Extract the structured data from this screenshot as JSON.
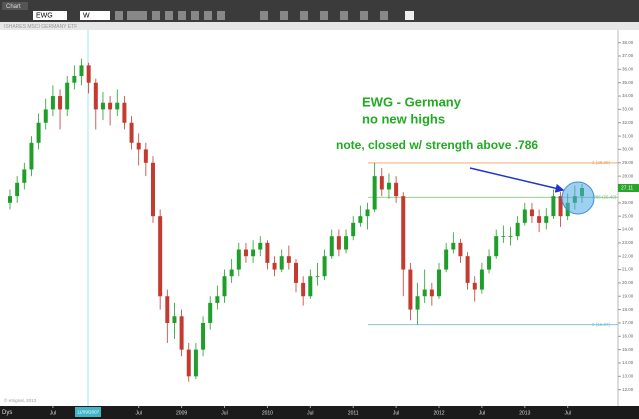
{
  "toolbar": {
    "tab": "Chart",
    "symbol": "EWG",
    "interval": "W"
  },
  "chart_data": {
    "type": "candlestick",
    "header": "ISHARES MSCI GERMANY ETF",
    "copyright": "© eSignal, 2013",
    "corner_label": "Dys",
    "cursor_label": "11/09/2007",
    "annotations": [
      "EWG - Germany",
      "no new highs",
      "note, closed w/ strength above .786"
    ],
    "up_color": "#1f9e2a",
    "down_color": "#c43a2f",
    "last_price": 27.11,
    "levels": [
      {
        "value": 28.99,
        "label": "1 (28.99)",
        "color": "#f0a060"
      },
      {
        "value": 26.42,
        "label": ".786 (26.42)",
        "color": "#70c070"
      },
      {
        "value": 16.87,
        "label": "0 (16.87)",
        "color": "#7ab8e0"
      }
    ],
    "open": [
      26,
      26.5,
      27.5,
      28.5,
      30.5,
      32,
      33,
      34,
      33,
      35,
      35.5,
      36.3,
      35,
      33,
      33.5,
      33,
      33.5,
      32,
      30.5,
      30,
      29,
      25,
      19,
      17,
      17.5,
      15,
      13,
      15,
      17,
      18.5,
      19,
      20.5,
      21,
      22.5,
      22,
      22.5,
      23,
      21.5,
      21,
      22,
      21.5,
      20,
      19,
      20.5,
      20.5,
      22,
      23.5,
      22.5,
      23.5,
      24.5,
      25,
      25.5,
      28,
      27,
      27.5,
      26.5,
      21,
      18,
      19,
      19.5,
      19,
      21,
      22.5,
      23,
      22,
      20,
      19.5,
      21,
      22,
      23.5,
      23.5,
      23.5,
      24.5,
      25.5,
      25,
      24.5,
      25,
      26.5,
      25,
      26,
      26.5
    ],
    "high": [
      27,
      28,
      29,
      31,
      32.7,
      33.8,
      34.8,
      34.5,
      35.5,
      36.3,
      36.8,
      36.5,
      35.3,
      34.3,
      34,
      34.5,
      34,
      32.5,
      31.2,
      30.5,
      29.5,
      25.5,
      19.5,
      18.5,
      18,
      15.5,
      15.5,
      17.5,
      19,
      19.8,
      21,
      21.8,
      23,
      23,
      23.2,
      23.5,
      23.2,
      22,
      22.5,
      22.8,
      21.8,
      20.5,
      21,
      21.5,
      22.5,
      24,
      24,
      24,
      25,
      25.8,
      26,
      28.99,
      28.6,
      28.2,
      28,
      26.8,
      21.5,
      20,
      21,
      20,
      21.5,
      23,
      23.8,
      23.3,
      22.3,
      20.5,
      21.5,
      22.5,
      24,
      24.3,
      24.2,
      25,
      26,
      26,
      25.5,
      25.6,
      27,
      26.8,
      26.7,
      27.3,
      27.4
    ],
    "low": [
      25.5,
      26,
      27,
      28,
      30,
      31.5,
      32.5,
      31.5,
      32.5,
      34.5,
      34.8,
      34.2,
      31.5,
      32.2,
      31.8,
      32.5,
      31.5,
      30,
      28.8,
      28,
      24.5,
      18,
      15.5,
      15.8,
      14.5,
      12.6,
      12.8,
      14.5,
      16.5,
      18,
      18.5,
      20,
      20.5,
      21.5,
      21.5,
      22,
      21,
      20.5,
      20.8,
      21,
      19.3,
      18.3,
      18.8,
      19.8,
      20.2,
      21.8,
      22,
      22.2,
      23.2,
      24.2,
      24,
      25.3,
      26.5,
      26.3,
      26,
      19,
      17.2,
      16.87,
      18.5,
      18.3,
      18.8,
      20.8,
      22.2,
      21.5,
      19.5,
      18.6,
      19.2,
      20.7,
      21.8,
      23,
      22.8,
      23.2,
      24.3,
      24.5,
      23.8,
      24,
      24.8,
      24.2,
      24.7,
      25.5,
      26
    ],
    "close": [
      26.5,
      27.5,
      28.5,
      30.5,
      32,
      33,
      34,
      33,
      35,
      35.5,
      36.3,
      35,
      33,
      33.5,
      33,
      33.5,
      32,
      30.5,
      30,
      29,
      25,
      19,
      17,
      17.5,
      15,
      13,
      15,
      17,
      18.5,
      19,
      20.5,
      21,
      22.5,
      22,
      22.5,
      23,
      21.5,
      21,
      22,
      21.5,
      20,
      19,
      20.5,
      20.5,
      22,
      23.5,
      22.5,
      23.5,
      24.5,
      25,
      25.5,
      28,
      27,
      27.5,
      26.5,
      21,
      18,
      19,
      19.5,
      19,
      21,
      22.5,
      23,
      22,
      20,
      19.5,
      21,
      22,
      23.5,
      23.5,
      23.5,
      24.5,
      25.5,
      25,
      24.5,
      25,
      26.5,
      25,
      26,
      26.5,
      27.11
    ],
    "ylim": [
      11.3,
      38.8
    ],
    "yticks": [
      {
        "value": 38,
        "label": "38.00"
      },
      {
        "value": 37,
        "label": "37.00"
      },
      {
        "value": 36,
        "label": "36.00"
      },
      {
        "value": 35,
        "label": "35.00"
      },
      {
        "value": 34,
        "label": "34.00"
      },
      {
        "value": 33,
        "label": "33.00"
      },
      {
        "value": 32,
        "label": "32.00"
      },
      {
        "value": 31,
        "label": "31.00"
      },
      {
        "value": 30,
        "label": "30.00"
      },
      {
        "value": 29,
        "label": "29.00"
      },
      {
        "value": 28,
        "label": "28.00"
      },
      {
        "value": 27,
        "label": "27.00"
      },
      {
        "value": 26,
        "label": "26.00"
      },
      {
        "value": 25,
        "label": "25.00"
      },
      {
        "value": 24,
        "label": "24.00"
      },
      {
        "value": 23,
        "label": "23.00"
      },
      {
        "value": 22,
        "label": "22.00"
      },
      {
        "value": 21,
        "label": "21.00"
      },
      {
        "value": 20,
        "label": "20.00"
      },
      {
        "value": 19,
        "label": "19.00"
      },
      {
        "value": 18,
        "label": "18.00"
      },
      {
        "value": 17,
        "label": "17.00"
      },
      {
        "value": 16,
        "label": "16.00"
      },
      {
        "value": 15,
        "label": "15.00"
      },
      {
        "value": 14,
        "label": "14.00"
      },
      {
        "value": 13,
        "label": "13.00"
      },
      {
        "value": 12,
        "label": "12.00"
      }
    ],
    "xticks": [
      {
        "value": 6,
        "label": "Jul"
      },
      {
        "value": 18,
        "label": "Jul"
      },
      {
        "value": 24,
        "label": "2009"
      },
      {
        "value": 30,
        "label": "Jul"
      },
      {
        "value": 36,
        "label": "2010"
      },
      {
        "value": 42,
        "label": "Jul"
      },
      {
        "value": 48,
        "label": "2011"
      },
      {
        "value": 54,
        "label": "Jul"
      },
      {
        "value": 60,
        "label": "2012"
      },
      {
        "value": 66,
        "label": "Jul"
      },
      {
        "value": 72,
        "label": "2013"
      },
      {
        "value": 78,
        "label": "Jul"
      }
    ]
  }
}
